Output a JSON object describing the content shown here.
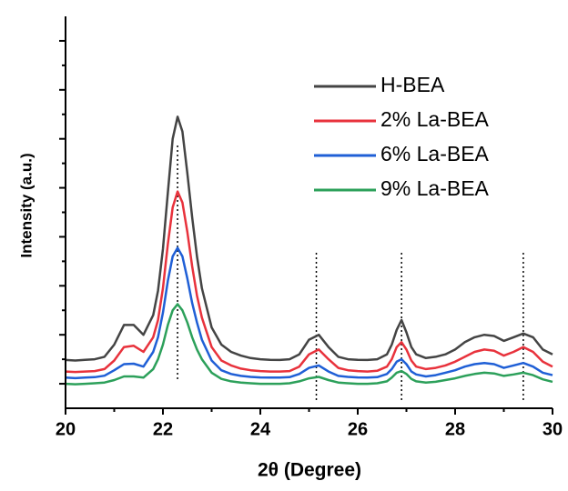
{
  "chart_data": {
    "type": "line",
    "xlabel": "2θ (Degree)",
    "ylabel": "Intensity (a.u.)",
    "x": [
      20.0,
      20.2,
      20.4,
      20.6,
      20.8,
      21.0,
      21.2,
      21.4,
      21.6,
      21.8,
      21.9,
      22.0,
      22.1,
      22.2,
      22.3,
      22.4,
      22.5,
      22.6,
      22.7,
      22.8,
      23.0,
      23.2,
      23.4,
      23.6,
      23.8,
      24.0,
      24.2,
      24.4,
      24.6,
      24.8,
      25.0,
      25.2,
      25.4,
      25.6,
      25.8,
      26.0,
      26.2,
      26.4,
      26.6,
      26.7,
      26.8,
      26.9,
      27.0,
      27.1,
      27.2,
      27.4,
      27.6,
      27.8,
      28.0,
      28.2,
      28.4,
      28.6,
      28.8,
      29.0,
      29.2,
      29.4,
      29.6,
      29.8,
      30.0
    ],
    "series": [
      {
        "name": "H-BEA",
        "color": "#444444",
        "values": [
          1.97,
          1.95,
          1.98,
          2.0,
          2.1,
          2.6,
          3.4,
          3.4,
          3.0,
          3.8,
          4.8,
          6.5,
          8.8,
          11.0,
          11.9,
          11.3,
          9.6,
          7.8,
          6.2,
          4.9,
          3.3,
          2.6,
          2.3,
          2.15,
          2.05,
          2.0,
          1.98,
          1.97,
          2.0,
          2.2,
          2.8,
          3.0,
          2.5,
          2.1,
          2.0,
          1.98,
          1.97,
          2.0,
          2.2,
          2.6,
          3.2,
          3.6,
          3.1,
          2.5,
          2.2,
          2.05,
          2.1,
          2.2,
          2.4,
          2.7,
          2.9,
          3.0,
          2.95,
          2.75,
          2.9,
          3.05,
          2.9,
          2.4,
          2.2
        ]
      },
      {
        "name": "2% La-BEA",
        "color": "#e8323c",
        "values": [
          1.5,
          1.48,
          1.5,
          1.52,
          1.6,
          1.95,
          2.5,
          2.55,
          2.3,
          2.9,
          3.6,
          4.9,
          6.7,
          8.2,
          8.85,
          8.4,
          7.2,
          5.8,
          4.6,
          3.7,
          2.5,
          1.95,
          1.75,
          1.62,
          1.55,
          1.52,
          1.5,
          1.5,
          1.52,
          1.7,
          2.2,
          2.4,
          2.0,
          1.65,
          1.55,
          1.52,
          1.5,
          1.53,
          1.7,
          2.0,
          2.5,
          2.7,
          2.4,
          1.95,
          1.7,
          1.6,
          1.65,
          1.75,
          1.9,
          2.1,
          2.3,
          2.4,
          2.35,
          2.15,
          2.3,
          2.5,
          2.3,
          1.9,
          1.7
        ]
      },
      {
        "name": "6% La-BEA",
        "color": "#1f5fd6",
        "values": [
          1.25,
          1.23,
          1.25,
          1.27,
          1.33,
          1.55,
          1.8,
          1.82,
          1.7,
          2.3,
          2.9,
          3.9,
          5.2,
          6.2,
          6.55,
          6.2,
          5.3,
          4.3,
          3.5,
          2.8,
          1.95,
          1.55,
          1.4,
          1.32,
          1.28,
          1.26,
          1.25,
          1.25,
          1.27,
          1.4,
          1.65,
          1.75,
          1.5,
          1.32,
          1.28,
          1.26,
          1.25,
          1.27,
          1.4,
          1.6,
          1.9,
          2.0,
          1.8,
          1.5,
          1.38,
          1.3,
          1.35,
          1.45,
          1.55,
          1.7,
          1.8,
          1.85,
          1.8,
          1.65,
          1.75,
          1.85,
          1.7,
          1.45,
          1.35
        ]
      },
      {
        "name": "9% La-BEA",
        "color": "#2ca05a",
        "values": [
          1.0,
          0.98,
          1.0,
          1.02,
          1.05,
          1.15,
          1.3,
          1.3,
          1.25,
          1.6,
          2.0,
          2.6,
          3.4,
          4.0,
          4.25,
          4.0,
          3.5,
          2.9,
          2.4,
          2.0,
          1.45,
          1.2,
          1.1,
          1.05,
          1.02,
          1.0,
          1.0,
          1.0,
          1.02,
          1.1,
          1.22,
          1.28,
          1.15,
          1.05,
          1.02,
          1.0,
          1.0,
          1.02,
          1.1,
          1.25,
          1.45,
          1.52,
          1.4,
          1.2,
          1.1,
          1.05,
          1.08,
          1.15,
          1.22,
          1.32,
          1.4,
          1.45,
          1.42,
          1.32,
          1.38,
          1.45,
          1.35,
          1.18,
          1.08
        ]
      }
    ],
    "reference_lines": [
      22.3,
      25.15,
      26.9,
      29.4
    ],
    "xlim": [
      20,
      30
    ],
    "xticks": [
      20,
      22,
      24,
      26,
      28,
      30
    ],
    "xminorticks": [
      21,
      23,
      25,
      27,
      29
    ],
    "ylim": [
      0,
      16
    ],
    "yticks": [
      1,
      2,
      3,
      4,
      5,
      6,
      7,
      8,
      9,
      10,
      11,
      12,
      13,
      14,
      15
    ],
    "legend": "upper right"
  }
}
